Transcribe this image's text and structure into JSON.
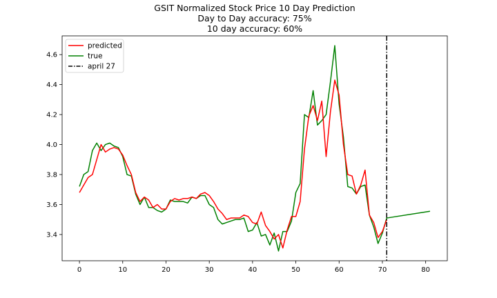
{
  "chart_data": {
    "type": "line",
    "title_lines": [
      "GSIT Normalized Stock Price 10 Day Prediction",
      "Day to Day accuracy: 75%",
      "10 day accuracy: 60%"
    ],
    "xlim": [
      -4,
      85
    ],
    "ylim": [
      3.225,
      4.725
    ],
    "xticks": [
      0,
      10,
      20,
      30,
      40,
      50,
      60,
      70,
      80
    ],
    "yticks": [
      3.4,
      3.6,
      3.8,
      4.0,
      4.2,
      4.4,
      4.6
    ],
    "grid": false,
    "legend": {
      "placement": "top-left"
    },
    "vline": {
      "x": 71,
      "label": "april 27",
      "color": "#000000",
      "style": "dashdot"
    },
    "series": [
      {
        "name": "predicted",
        "color": "#ff0000",
        "points": [
          [
            0,
            3.68
          ],
          [
            1,
            3.73
          ],
          [
            2,
            3.78
          ],
          [
            3,
            3.8
          ],
          [
            4,
            3.9
          ],
          [
            5,
            4.0
          ],
          [
            6,
            3.95
          ],
          [
            7,
            3.97
          ],
          [
            8,
            3.98
          ],
          [
            9,
            3.97
          ],
          [
            10,
            3.93
          ],
          [
            11,
            3.86
          ],
          [
            12,
            3.8
          ],
          [
            13,
            3.68
          ],
          [
            14,
            3.62
          ],
          [
            15,
            3.65
          ],
          [
            16,
            3.63
          ],
          [
            17,
            3.58
          ],
          [
            18,
            3.6
          ],
          [
            19,
            3.57
          ],
          [
            20,
            3.57
          ],
          [
            21,
            3.62
          ],
          [
            22,
            3.64
          ],
          [
            23,
            3.63
          ],
          [
            24,
            3.64
          ],
          [
            25,
            3.64
          ],
          [
            26,
            3.65
          ],
          [
            27,
            3.64
          ],
          [
            28,
            3.67
          ],
          [
            29,
            3.68
          ],
          [
            30,
            3.66
          ],
          [
            31,
            3.62
          ],
          [
            32,
            3.57
          ],
          [
            33,
            3.54
          ],
          [
            34,
            3.5
          ],
          [
            35,
            3.51
          ],
          [
            36,
            3.51
          ],
          [
            37,
            3.51
          ],
          [
            38,
            3.53
          ],
          [
            39,
            3.52
          ],
          [
            40,
            3.48
          ],
          [
            41,
            3.47
          ],
          [
            42,
            3.55
          ],
          [
            43,
            3.46
          ],
          [
            44,
            3.42
          ],
          [
            45,
            3.37
          ],
          [
            46,
            3.4
          ],
          [
            47,
            3.31
          ],
          [
            48,
            3.43
          ],
          [
            49,
            3.52
          ],
          [
            50,
            3.52
          ],
          [
            51,
            3.62
          ],
          [
            52,
            3.97
          ],
          [
            53,
            4.19
          ],
          [
            54,
            4.26
          ],
          [
            55,
            4.16
          ],
          [
            56,
            4.29
          ],
          [
            57,
            3.92
          ],
          [
            58,
            4.22
          ],
          [
            59,
            4.43
          ],
          [
            60,
            4.33
          ],
          [
            61,
            4.0
          ],
          [
            62,
            3.8
          ],
          [
            63,
            3.79
          ],
          [
            64,
            3.67
          ],
          [
            65,
            3.73
          ],
          [
            66,
            3.83
          ],
          [
            67,
            3.53
          ],
          [
            68,
            3.48
          ],
          [
            69,
            3.38
          ],
          [
            70,
            3.42
          ],
          [
            71,
            3.5
          ]
        ]
      },
      {
        "name": "true",
        "color": "#008000",
        "points": [
          [
            0,
            3.72
          ],
          [
            1,
            3.8
          ],
          [
            2,
            3.82
          ],
          [
            3,
            3.96
          ],
          [
            4,
            4.01
          ],
          [
            5,
            3.96
          ],
          [
            6,
            4.0
          ],
          [
            7,
            4.01
          ],
          [
            8,
            3.99
          ],
          [
            9,
            3.98
          ],
          [
            10,
            3.92
          ],
          [
            11,
            3.8
          ],
          [
            12,
            3.79
          ],
          [
            13,
            3.67
          ],
          [
            14,
            3.6
          ],
          [
            15,
            3.65
          ],
          [
            16,
            3.58
          ],
          [
            17,
            3.58
          ],
          [
            18,
            3.56
          ],
          [
            19,
            3.55
          ],
          [
            20,
            3.57
          ],
          [
            21,
            3.63
          ],
          [
            22,
            3.62
          ],
          [
            23,
            3.62
          ],
          [
            24,
            3.62
          ],
          [
            25,
            3.61
          ],
          [
            26,
            3.65
          ],
          [
            27,
            3.64
          ],
          [
            28,
            3.66
          ],
          [
            29,
            3.66
          ],
          [
            30,
            3.6
          ],
          [
            31,
            3.58
          ],
          [
            32,
            3.5
          ],
          [
            33,
            3.47
          ],
          [
            34,
            3.48
          ],
          [
            35,
            3.49
          ],
          [
            36,
            3.5
          ],
          [
            37,
            3.5
          ],
          [
            38,
            3.51
          ],
          [
            39,
            3.42
          ],
          [
            40,
            3.43
          ],
          [
            41,
            3.48
          ],
          [
            42,
            3.39
          ],
          [
            43,
            3.4
          ],
          [
            44,
            3.33
          ],
          [
            45,
            3.41
          ],
          [
            46,
            3.29
          ],
          [
            47,
            3.42
          ],
          [
            48,
            3.42
          ],
          [
            49,
            3.49
          ],
          [
            50,
            3.68
          ],
          [
            51,
            3.74
          ],
          [
            52,
            4.2
          ],
          [
            53,
            4.18
          ],
          [
            54,
            4.36
          ],
          [
            55,
            4.13
          ],
          [
            56,
            4.16
          ],
          [
            57,
            4.2
          ],
          [
            58,
            4.42
          ],
          [
            59,
            4.66
          ],
          [
            60,
            4.27
          ],
          [
            61,
            4.05
          ],
          [
            62,
            3.72
          ],
          [
            63,
            3.71
          ],
          [
            64,
            3.67
          ],
          [
            65,
            3.72
          ],
          [
            66,
            3.73
          ],
          [
            67,
            3.53
          ],
          [
            68,
            3.45
          ],
          [
            69,
            3.34
          ],
          [
            70,
            3.41
          ],
          [
            71,
            3.51
          ],
          [
            81,
            3.555
          ]
        ]
      }
    ]
  }
}
